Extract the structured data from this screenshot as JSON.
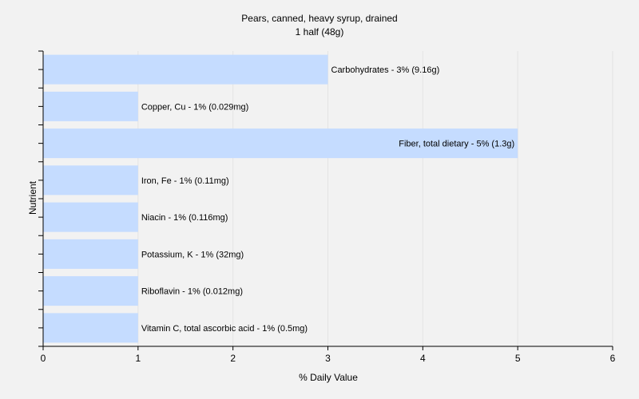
{
  "chart_data": {
    "type": "bar",
    "orientation": "horizontal",
    "title": "Pears, canned, heavy syrup, drained",
    "subtitle": "1 half (48g)",
    "xlabel": "% Daily Value",
    "ylabel": "Nutrient",
    "xlim": [
      0,
      6
    ],
    "xticks": [
      "0",
      "1",
      "2",
      "3",
      "4",
      "5",
      "6"
    ],
    "grid": true,
    "bar_color": "#c5dcff",
    "categories": [
      "Carbohydrates",
      "Copper, Cu",
      "Fiber, total dietary",
      "Iron, Fe",
      "Niacin",
      "Potassium, K",
      "Riboflavin",
      "Vitamin C, total ascorbic acid"
    ],
    "values": [
      3,
      1,
      5,
      1,
      1,
      1,
      1,
      1
    ],
    "labels": [
      "Carbohydrates - 3% (9.16g)",
      "Copper, Cu - 1% (0.029mg)",
      "Fiber, total dietary - 5% (1.3g)",
      "Iron, Fe - 1% (0.11mg)",
      "Niacin - 1% (0.116mg)",
      "Potassium, K - 1% (32mg)",
      "Riboflavin - 1% (0.012mg)",
      "Vitamin C, total ascorbic acid - 1% (0.5mg)"
    ]
  }
}
